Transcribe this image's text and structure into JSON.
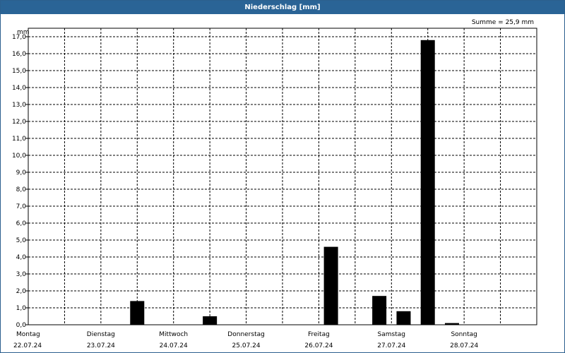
{
  "window": {
    "title": "Niederschlag [mm]"
  },
  "chart_data": {
    "type": "bar",
    "title": "Niederschlag [mm]",
    "ylabel": "mm",
    "summary": "Summe = 25,9 mm",
    "ylim": [
      0,
      17.5
    ],
    "yticks": [
      "0,0",
      "1,0",
      "2,0",
      "3,0",
      "4,0",
      "5,0",
      "6,0",
      "7,0",
      "8,0",
      "9,0",
      "10,0",
      "11,0",
      "12,0",
      "13,0",
      "14,0",
      "15,0",
      "16,0",
      "17,0"
    ],
    "xlim": [
      0,
      7
    ],
    "days": [
      {
        "weekday": "Montag",
        "date": "22.07.24"
      },
      {
        "weekday": "Dienstag",
        "date": "23.07.24"
      },
      {
        "weekday": "Mittwoch",
        "date": "24.07.24"
      },
      {
        "weekday": "Donnerstag",
        "date": "25.07.24"
      },
      {
        "weekday": "Freitag",
        "date": "26.07.24"
      },
      {
        "weekday": "Samstag",
        "date": "27.07.24"
      },
      {
        "weekday": "Sonntag",
        "date": "28.07.24"
      }
    ],
    "bars": [
      {
        "x": 1.5,
        "value": 1.4
      },
      {
        "x": 2.5,
        "value": 0.5
      },
      {
        "x": 4.167,
        "value": 4.6
      },
      {
        "x": 4.833,
        "value": 1.7
      },
      {
        "x": 5.167,
        "value": 0.8
      },
      {
        "x": 5.5,
        "value": 16.8
      },
      {
        "x": 5.833,
        "value": 0.1
      }
    ],
    "grid": true
  }
}
